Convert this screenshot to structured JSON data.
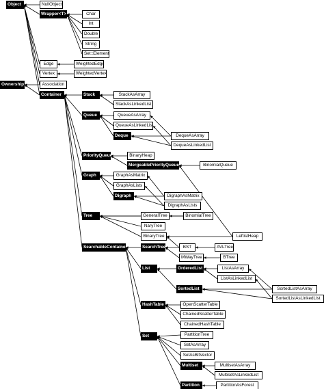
{
  "diagram": {
    "nodes": [
      {
        "id": "Object",
        "label": "Object",
        "style": "filled"
      },
      {
        "id": "NullObject",
        "label": "NullObject",
        "style": "outline"
      },
      {
        "id": "Wrapper",
        "label": "Wrapper<T>",
        "style": "filled"
      },
      {
        "id": "Char",
        "label": "Char",
        "style": "outline"
      },
      {
        "id": "Int",
        "label": "Int",
        "style": "outline"
      },
      {
        "id": "Double",
        "label": "Double",
        "style": "outline"
      },
      {
        "id": "String",
        "label": "String",
        "style": "outline"
      },
      {
        "id": "SetElement",
        "label": "Set::Element",
        "style": "outline"
      },
      {
        "id": "Edge",
        "label": "Edge",
        "style": "outline"
      },
      {
        "id": "WeightedEdge",
        "label": "WeightedEdge",
        "style": "outline"
      },
      {
        "id": "Vertex",
        "label": "Vertex",
        "style": "outline"
      },
      {
        "id": "WeightedVertex",
        "label": "WeightedVertex",
        "style": "outline"
      },
      {
        "id": "Ownership",
        "label": "Ownership",
        "style": "filled"
      },
      {
        "id": "Association",
        "label": "Association",
        "style": "outline"
      },
      {
        "id": "Container",
        "label": "Container",
        "style": "filled"
      },
      {
        "id": "Stack",
        "label": "Stack",
        "style": "filled"
      },
      {
        "id": "StackAsArray",
        "label": "StackAsArray",
        "style": "outline"
      },
      {
        "id": "StackAsLinkedList",
        "label": "StackAsLinkedList",
        "style": "outline"
      },
      {
        "id": "Queue",
        "label": "Queue",
        "style": "filled"
      },
      {
        "id": "QueueAsArray",
        "label": "QueueAsArray",
        "style": "outline"
      },
      {
        "id": "QueueAsLinkedList",
        "label": "QueueAsLinkedList",
        "style": "outline"
      },
      {
        "id": "Deque",
        "label": "Deque",
        "style": "filled"
      },
      {
        "id": "DequeAsArray",
        "label": "DequeAsArray",
        "style": "outline"
      },
      {
        "id": "DequeAsLinkedList",
        "label": "DequeAsLinkedList",
        "style": "outline"
      },
      {
        "id": "PriorityQueue",
        "label": "PriorityQueue",
        "style": "filled"
      },
      {
        "id": "BinaryHeap",
        "label": "BinaryHeap",
        "style": "outline"
      },
      {
        "id": "MergeablePriorityQueue",
        "label": "MergeablePriorityQueue",
        "style": "filled"
      },
      {
        "id": "BinomialQueue",
        "label": "BinomialQueue",
        "style": "outline"
      },
      {
        "id": "Graph",
        "label": "Graph",
        "style": "filled"
      },
      {
        "id": "GraphAsMatrix",
        "label": "GraphAsMatrix",
        "style": "outline"
      },
      {
        "id": "GraphAsLists",
        "label": "GraphAsLists",
        "style": "outline"
      },
      {
        "id": "Digraph",
        "label": "Digraph",
        "style": "filled"
      },
      {
        "id": "DigraphAsMatrix",
        "label": "DigraphAsMatrix",
        "style": "outline"
      },
      {
        "id": "DigraphAsLists",
        "label": "DigraphAsLists",
        "style": "outline"
      },
      {
        "id": "Tree",
        "label": "Tree",
        "style": "filled"
      },
      {
        "id": "GeneralTree",
        "label": "GeneralTree",
        "style": "outline"
      },
      {
        "id": "BinomialTree",
        "label": "BinomialTree",
        "style": "outline"
      },
      {
        "id": "NaryTree",
        "label": "NaryTree",
        "style": "outline"
      },
      {
        "id": "BinaryTree",
        "label": "BinaryTree",
        "style": "outline"
      },
      {
        "id": "LeftistHeap",
        "label": "LeftistHeap",
        "style": "outline"
      },
      {
        "id": "SearchableContainer",
        "label": "SearchableContainer",
        "style": "filled"
      },
      {
        "id": "SearchTree",
        "label": "SearchTree",
        "style": "filled"
      },
      {
        "id": "BST",
        "label": "BST",
        "style": "outline"
      },
      {
        "id": "AVLTree",
        "label": "AVLTree",
        "style": "outline"
      },
      {
        "id": "MWayTree",
        "label": "MWayTree",
        "style": "outline"
      },
      {
        "id": "BTree",
        "label": "BTree",
        "style": "outline"
      },
      {
        "id": "List",
        "label": "List",
        "style": "filled"
      },
      {
        "id": "OrderedList",
        "label": "OrderedList",
        "style": "filled"
      },
      {
        "id": "ListAsArray",
        "label": "ListAsArray",
        "style": "outline"
      },
      {
        "id": "ListAsLinkedList",
        "label": "ListAsLinkedList",
        "style": "outline"
      },
      {
        "id": "SortedList",
        "label": "SortedList",
        "style": "filled"
      },
      {
        "id": "SortedListAsArray",
        "label": "SortedListAsArray",
        "style": "outline"
      },
      {
        "id": "SortedListAsLinkedList",
        "label": "SortedListAsLinkedList",
        "style": "outline"
      },
      {
        "id": "HashTable",
        "label": "HashTable",
        "style": "filled"
      },
      {
        "id": "OpenScatterTable",
        "label": "OpenScatterTable",
        "style": "outline"
      },
      {
        "id": "ChainedScatterTable",
        "label": "ChainedScatterTable",
        "style": "outline"
      },
      {
        "id": "ChainedHashTable",
        "label": "ChainedHashTable",
        "style": "outline"
      },
      {
        "id": "Set",
        "label": "Set",
        "style": "filled"
      },
      {
        "id": "PartitionTree",
        "label": "PartitionTree",
        "style": "outline"
      },
      {
        "id": "SetAsArray",
        "label": "SetAsArray",
        "style": "outline"
      },
      {
        "id": "SetAsBitVector",
        "label": "SetAsBitVector",
        "style": "outline"
      },
      {
        "id": "Multiset",
        "label": "Multiset",
        "style": "filled"
      },
      {
        "id": "MultisetAsArray",
        "label": "MultisetAsArray",
        "style": "outline"
      },
      {
        "id": "MultisetAsLinkedList",
        "label": "MultisetAsLinkedList",
        "style": "outline"
      },
      {
        "id": "Partition",
        "label": "Partition",
        "style": "filled"
      },
      {
        "id": "PartitionAsForest",
        "label": "PartitionAsForest",
        "style": "outline"
      }
    ],
    "edges": [
      [
        "Object",
        "NullObject"
      ],
      [
        "Object",
        "Wrapper"
      ],
      [
        "Object",
        "Edge"
      ],
      [
        "Object",
        "Vertex"
      ],
      [
        "Object",
        "Association"
      ],
      [
        "Object",
        "Container"
      ],
      [
        "Wrapper",
        "Char"
      ],
      [
        "Wrapper",
        "Int"
      ],
      [
        "Wrapper",
        "Double"
      ],
      [
        "Wrapper",
        "String"
      ],
      [
        "Wrapper",
        "SetElement"
      ],
      [
        "Edge",
        "WeightedEdge"
      ],
      [
        "Vertex",
        "WeightedVertex"
      ],
      [
        "Ownership",
        "Association"
      ],
      [
        "Ownership",
        "Container"
      ],
      [
        "Container",
        "Stack"
      ],
      [
        "Container",
        "Queue"
      ],
      [
        "Container",
        "PriorityQueue"
      ],
      [
        "Container",
        "Graph"
      ],
      [
        "Container",
        "Tree"
      ],
      [
        "Container",
        "SearchableContainer"
      ],
      [
        "Stack",
        "StackAsArray"
      ],
      [
        "Stack",
        "StackAsLinkedList"
      ],
      [
        "Queue",
        "QueueAsArray"
      ],
      [
        "Queue",
        "QueueAsLinkedList"
      ],
      [
        "Queue",
        "Deque"
      ],
      [
        "QueueAsArray",
        "DequeAsArray"
      ],
      [
        "QueueAsLinkedList",
        "DequeAsLinkedList"
      ],
      [
        "Deque",
        "DequeAsArray"
      ],
      [
        "Deque",
        "DequeAsLinkedList"
      ],
      [
        "PriorityQueue",
        "BinaryHeap"
      ],
      [
        "PriorityQueue",
        "MergeablePriorityQueue"
      ],
      [
        "MergeablePriorityQueue",
        "BinomialQueue"
      ],
      [
        "MergeablePriorityQueue",
        "LeftistHeap"
      ],
      [
        "Graph",
        "GraphAsMatrix"
      ],
      [
        "Graph",
        "GraphAsLists"
      ],
      [
        "Graph",
        "Digraph"
      ],
      [
        "GraphAsMatrix",
        "DigraphAsMatrix"
      ],
      [
        "GraphAsLists",
        "DigraphAsLists"
      ],
      [
        "Digraph",
        "DigraphAsMatrix"
      ],
      [
        "Digraph",
        "DigraphAsLists"
      ],
      [
        "Tree",
        "GeneralTree"
      ],
      [
        "Tree",
        "BinomialTree"
      ],
      [
        "Tree",
        "NaryTree"
      ],
      [
        "Tree",
        "BinaryTree"
      ],
      [
        "GeneralTree",
        "BinomialTree"
      ],
      [
        "BinaryTree",
        "LeftistHeap"
      ],
      [
        "BinaryTree",
        "BST"
      ],
      [
        "SearchableContainer",
        "SearchTree"
      ],
      [
        "SearchableContainer",
        "List"
      ],
      [
        "SearchableContainer",
        "HashTable"
      ],
      [
        "SearchableContainer",
        "Set"
      ],
      [
        "SearchTree",
        "BST"
      ],
      [
        "SearchTree",
        "MWayTree"
      ],
      [
        "BST",
        "AVLTree"
      ],
      [
        "MWayTree",
        "BTree"
      ],
      [
        "List",
        "OrderedList"
      ],
      [
        "List",
        "SortedList"
      ],
      [
        "OrderedList",
        "ListAsArray"
      ],
      [
        "OrderedList",
        "ListAsLinkedList"
      ],
      [
        "SortedList",
        "SortedListAsArray"
      ],
      [
        "SortedList",
        "SortedListAsLinkedList"
      ],
      [
        "ListAsArray",
        "SortedListAsArray"
      ],
      [
        "ListAsLinkedList",
        "SortedListAsLinkedList"
      ],
      [
        "HashTable",
        "OpenScatterTable"
      ],
      [
        "HashTable",
        "ChainedScatterTable"
      ],
      [
        "HashTable",
        "ChainedHashTable"
      ],
      [
        "Set",
        "PartitionTree"
      ],
      [
        "Set",
        "SetAsArray"
      ],
      [
        "Set",
        "SetAsBitVector"
      ],
      [
        "Set",
        "Multiset"
      ],
      [
        "Set",
        "Partition"
      ],
      [
        "Multiset",
        "MultisetAsArray"
      ],
      [
        "Multiset",
        "MultisetAsLinkedList"
      ],
      [
        "Partition",
        "PartitionAsForest"
      ]
    ]
  }
}
